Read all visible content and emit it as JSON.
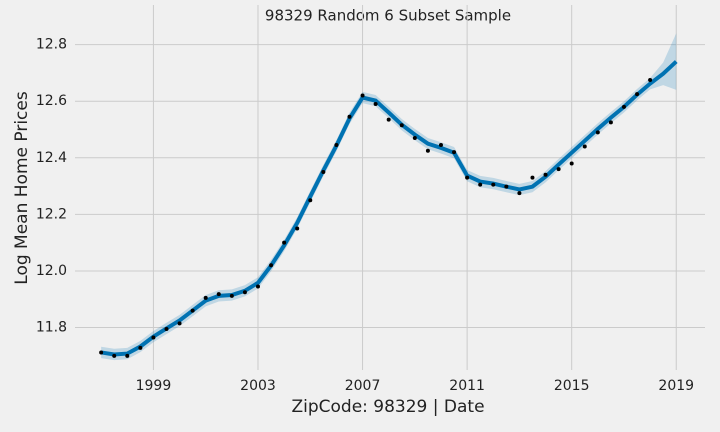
{
  "chart_data": {
    "type": "line",
    "title": "98329 Random 6 Subset Sample",
    "xlabel": "ZipCode: 98329 | Date",
    "ylabel": "Log Mean Home Prices",
    "xlim": [
      1996.0,
      2020.1
    ],
    "ylim": [
      11.65,
      12.94
    ],
    "xticks": [
      1999,
      2003,
      2007,
      2011,
      2015,
      2019
    ],
    "yticks": [
      11.8,
      {
        "value": 12,
        "label": "12.0"
      },
      12.2,
      12.4,
      12.6,
      12.8
    ],
    "grid": true,
    "line_color": "#0072B2",
    "point_color": "#000000",
    "x": [
      1997,
      1997.5,
      1998,
      1998.5,
      1999,
      1999.5,
      2000,
      2000.5,
      2001,
      2001.5,
      2002,
      2002.5,
      2003,
      2003.5,
      2004,
      2004.5,
      2005,
      2005.5,
      2006,
      2006.5,
      2007,
      2007.5,
      2008,
      2008.5,
      2009,
      2009.5,
      2010,
      2010.5,
      2011,
      2011.5,
      2012,
      2012.5,
      2013,
      2013.5,
      2014,
      2014.5,
      2015,
      2015.5,
      2016,
      2016.5,
      2017,
      2017.5,
      2018,
      2018.5,
      2019
    ],
    "yhat": [
      11.712,
      11.705,
      11.708,
      11.733,
      11.768,
      11.797,
      11.825,
      11.86,
      11.895,
      11.912,
      11.915,
      11.93,
      11.958,
      12.019,
      12.09,
      12.17,
      12.263,
      12.355,
      12.443,
      12.539,
      12.613,
      12.602,
      12.56,
      12.517,
      12.482,
      12.45,
      12.435,
      12.418,
      12.337,
      12.316,
      12.309,
      12.298,
      12.288,
      12.298,
      12.333,
      12.376,
      12.418,
      12.46,
      12.502,
      12.542,
      12.58,
      12.623,
      12.662,
      12.697,
      12.74
    ],
    "yhat_lower": [
      11.692,
      11.685,
      11.688,
      11.713,
      11.748,
      11.777,
      11.805,
      11.84,
      11.875,
      11.892,
      11.895,
      11.91,
      11.938,
      11.999,
      12.07,
      12.15,
      12.243,
      12.335,
      12.423,
      12.519,
      12.593,
      12.582,
      12.54,
      12.497,
      12.462,
      12.43,
      12.415,
      12.398,
      12.317,
      12.296,
      12.289,
      12.278,
      12.268,
      12.278,
      12.313,
      12.356,
      12.398,
      12.44,
      12.482,
      12.522,
      12.56,
      12.603,
      12.642,
      12.657,
      12.64
    ],
    "yhat_upper": [
      11.732,
      11.725,
      11.728,
      11.753,
      11.788,
      11.817,
      11.845,
      11.88,
      11.915,
      11.932,
      11.935,
      11.95,
      11.978,
      12.039,
      12.11,
      12.19,
      12.283,
      12.375,
      12.463,
      12.559,
      12.633,
      12.622,
      12.58,
      12.537,
      12.502,
      12.47,
      12.455,
      12.438,
      12.357,
      12.336,
      12.329,
      12.318,
      12.308,
      12.318,
      12.353,
      12.396,
      12.438,
      12.48,
      12.522,
      12.562,
      12.6,
      12.643,
      12.682,
      12.737,
      12.84
    ],
    "observed": {
      "x": [
        1997,
        1997.5,
        1998,
        1998.5,
        1999,
        1999.5,
        2000,
        2000.5,
        2001,
        2001.5,
        2002,
        2002.5,
        2003,
        2003.5,
        2004,
        2004.5,
        2005,
        2005.5,
        2006,
        2006.5,
        2007,
        2007.5,
        2008,
        2008.5,
        2009,
        2009.5,
        2010,
        2010.5,
        2011,
        2011.5,
        2012,
        2012.5,
        2013,
        2013.5,
        2014,
        2014.5,
        2015,
        2015.5,
        2016,
        2016.5,
        2017,
        2017.5,
        2018
      ],
      "y": [
        11.712,
        11.7,
        11.7,
        11.728,
        11.765,
        11.795,
        11.815,
        11.86,
        11.905,
        11.918,
        11.912,
        11.925,
        11.945,
        12.02,
        12.1,
        12.15,
        12.25,
        12.35,
        12.445,
        12.545,
        12.62,
        12.59,
        12.535,
        12.515,
        12.47,
        12.425,
        12.445,
        12.42,
        12.33,
        12.305,
        12.305,
        12.298,
        12.275,
        12.33,
        12.34,
        12.36,
        12.38,
        12.44,
        12.49,
        12.525,
        12.58,
        12.625,
        12.675
      ]
    }
  }
}
